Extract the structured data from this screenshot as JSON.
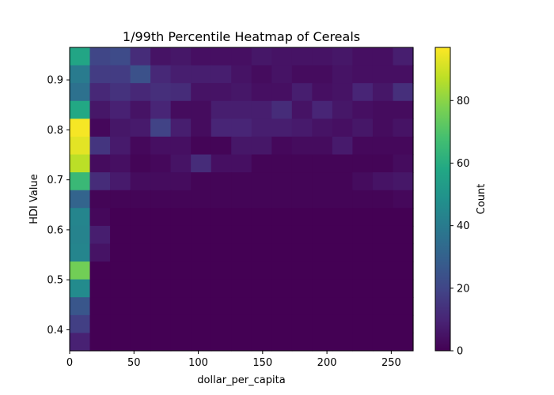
{
  "chart_data": {
    "type": "heatmap",
    "title": "1/99th Percentile Heatmap of Cereals",
    "xlabel": "dollar_per_capita",
    "ylabel": "HDI Value",
    "colorbar_label": "Count",
    "colormap": "viridis",
    "xlim": [
      0,
      267
    ],
    "ylim": [
      0.358,
      0.965
    ],
    "vmin": 0,
    "vmax": 97,
    "x_ticks": [
      0,
      50,
      100,
      150,
      200,
      250
    ],
    "y_ticks": [
      0.4,
      0.5,
      0.6,
      0.7,
      0.8,
      0.9
    ],
    "colorbar_ticks": [
      0,
      20,
      40,
      60,
      80
    ],
    "n_cols": 17,
    "n_rows": 17,
    "grid": false,
    "counts_top_to_bottom": [
      [
        57,
        20,
        22,
        12,
        5,
        6,
        4,
        4,
        4,
        6,
        5,
        5,
        5,
        6,
        4,
        4,
        8
      ],
      [
        40,
        17,
        17,
        24,
        11,
        8,
        8,
        8,
        5,
        3,
        5,
        3,
        3,
        5,
        4,
        4,
        4
      ],
      [
        36,
        11,
        14,
        11,
        13,
        12,
        5,
        5,
        6,
        4,
        4,
        8,
        4,
        5,
        10,
        6,
        13
      ],
      [
        58,
        6,
        9,
        5,
        10,
        3,
        3,
        8,
        8,
        8,
        12,
        5,
        10,
        6,
        4,
        3,
        3
      ],
      [
        96,
        2,
        6,
        7,
        19,
        8,
        3,
        10,
        10,
        8,
        8,
        7,
        5,
        4,
        6,
        3,
        5
      ],
      [
        93,
        15,
        7,
        2,
        4,
        4,
        1,
        1,
        6,
        6,
        2,
        3,
        3,
        7,
        2,
        2,
        2
      ],
      [
        87,
        3,
        4,
        1,
        2,
        5,
        12,
        4,
        4,
        1,
        1,
        1,
        1,
        1,
        1,
        1,
        3
      ],
      [
        65,
        12,
        7,
        3,
        3,
        3,
        1,
        1,
        1,
        1,
        1,
        1,
        1,
        1,
        3,
        5,
        6
      ],
      [
        31,
        1,
        1,
        1,
        1,
        1,
        1,
        1,
        1,
        1,
        1,
        1,
        1,
        1,
        1,
        1,
        2
      ],
      [
        44,
        2,
        0,
        0,
        0,
        0,
        0,
        0,
        0,
        0,
        0,
        0,
        0,
        0,
        0,
        0,
        0
      ],
      [
        43,
        8,
        0,
        0,
        0,
        0,
        0,
        0,
        0,
        0,
        0,
        0,
        0,
        0,
        0,
        0,
        0
      ],
      [
        44,
        5,
        0,
        0,
        0,
        0,
        0,
        0,
        0,
        0,
        0,
        0,
        0,
        0,
        0,
        0,
        0
      ],
      [
        76,
        0,
        0,
        0,
        0,
        0,
        0,
        0,
        0,
        0,
        0,
        0,
        0,
        0,
        0,
        0,
        0
      ],
      [
        46,
        0,
        0,
        0,
        0,
        0,
        0,
        0,
        0,
        0,
        0,
        0,
        0,
        0,
        0,
        0,
        0
      ],
      [
        26,
        0,
        0,
        0,
        0,
        0,
        0,
        0,
        0,
        0,
        0,
        0,
        0,
        0,
        0,
        0,
        0
      ],
      [
        18,
        0,
        0,
        0,
        0,
        0,
        0,
        0,
        0,
        0,
        0,
        0,
        0,
        0,
        0,
        0,
        0
      ],
      [
        9,
        0,
        0,
        0,
        0,
        0,
        0,
        0,
        0,
        0,
        0,
        0,
        0,
        0,
        0,
        0,
        0
      ]
    ]
  }
}
